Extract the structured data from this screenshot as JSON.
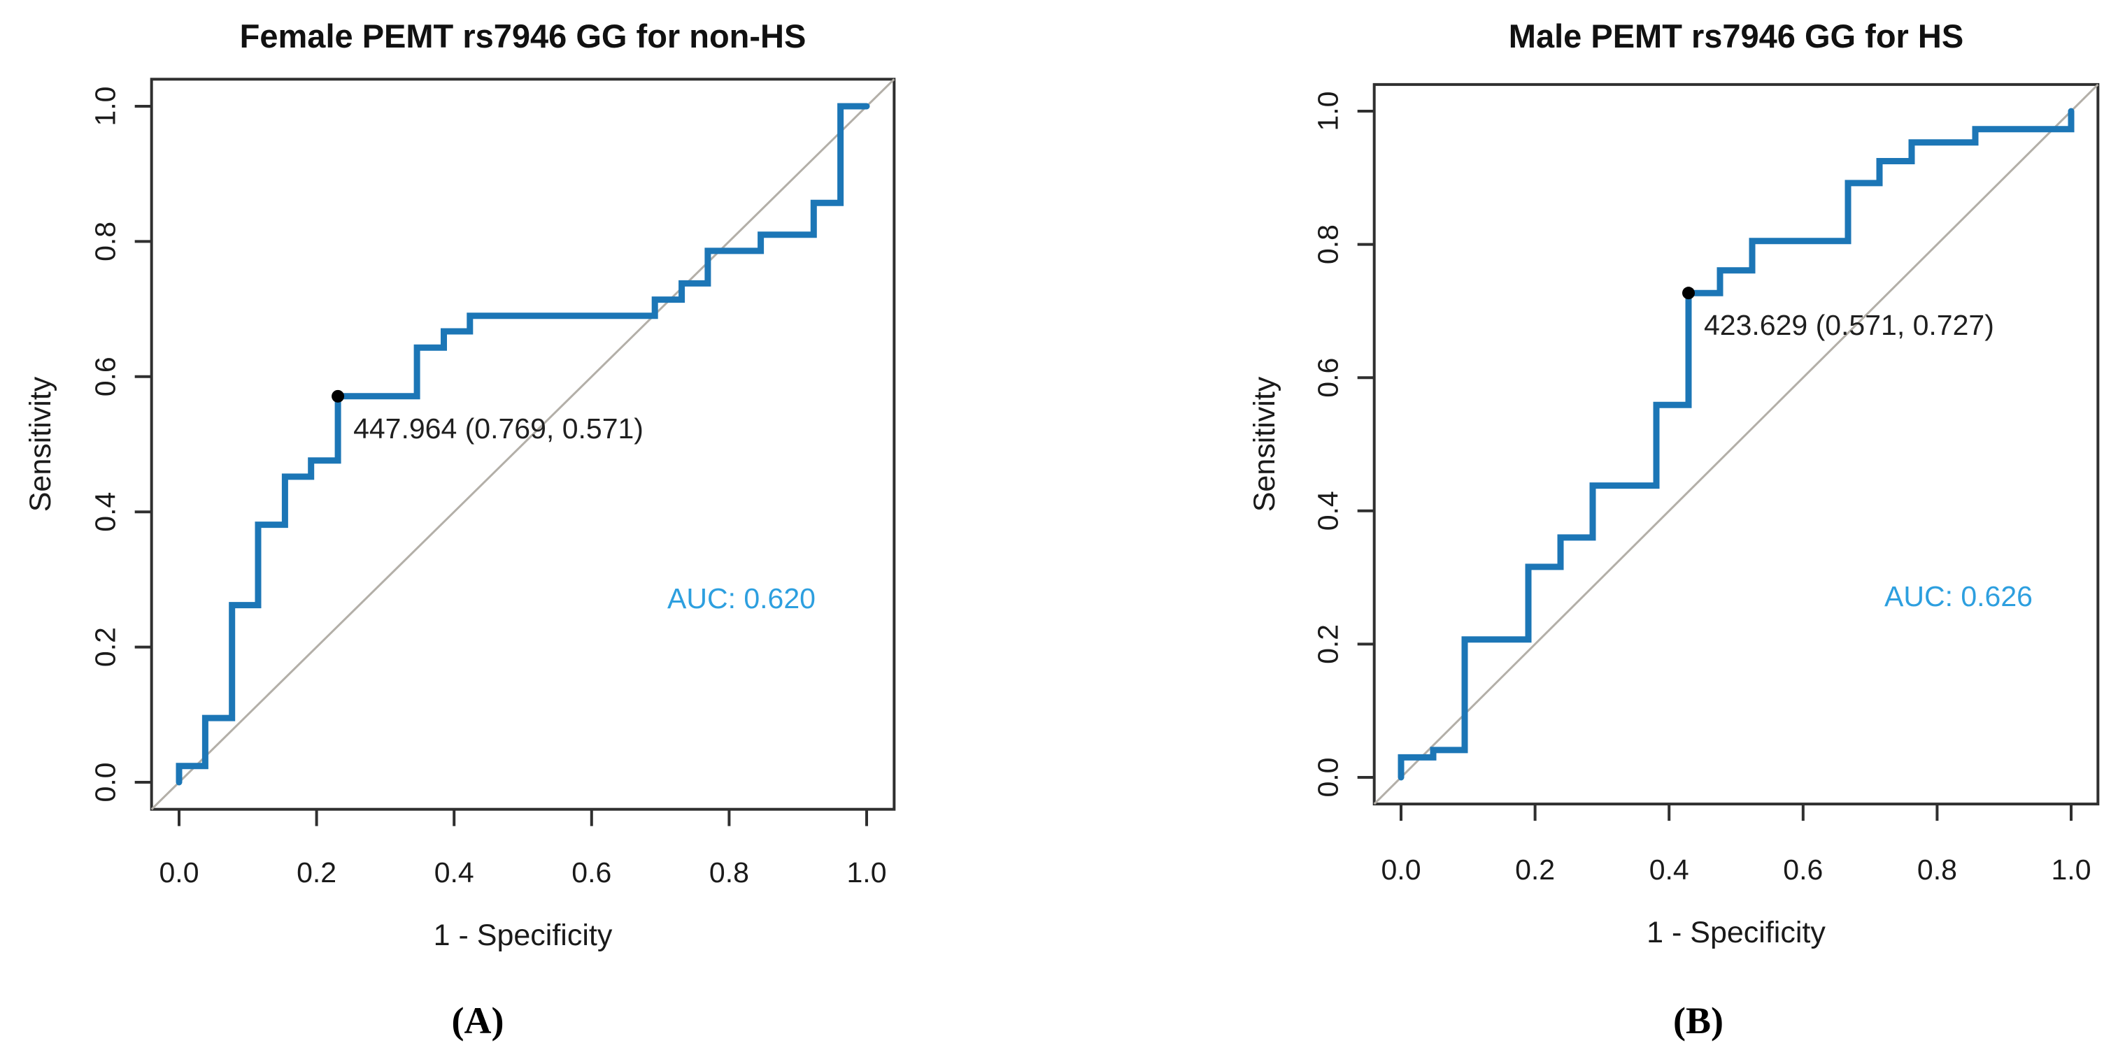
{
  "figure": {
    "background": "#ffffff",
    "colors": {
      "curve": "#1c76b6",
      "auc_text": "#2d9fdf",
      "diagonal": "#b3afa8",
      "axis": "#2f2f2f",
      "text": "#1a1a1a",
      "marked_point": "#000000"
    }
  },
  "chart_data": [
    {
      "type": "line",
      "subtype": "roc-step-curve",
      "panel": "A",
      "caption": "(A)",
      "title": "Female PEMT rs7946 GG for non-HS",
      "xlabel": "1 - Specificity",
      "ylabel": "Sensitivity",
      "xlim": [
        -0.04,
        1.04
      ],
      "ylim": [
        -0.04,
        1.04
      ],
      "grid": false,
      "xticks": [
        "0.0",
        "0.2",
        "0.4",
        "0.6",
        "0.8",
        "1.0"
      ],
      "yticks": [
        "0.0",
        "0.2",
        "0.4",
        "0.6",
        "0.8",
        "1.0"
      ],
      "diagonal_reference": true,
      "auc_label": "AUC: 0.620",
      "auc_value": 0.62,
      "threshold_label": "447.964 (0.769, 0.571)",
      "marked_point": {
        "x": 0.231,
        "y": 0.571,
        "threshold": 447.964,
        "specificity": 0.769,
        "sensitivity": 0.571
      },
      "series": [
        {
          "name": "ROC curve",
          "points": [
            [
              0.0,
              0.0
            ],
            [
              0.0,
              0.024
            ],
            [
              0.038,
              0.024
            ],
            [
              0.038,
              0.095
            ],
            [
              0.077,
              0.095
            ],
            [
              0.077,
              0.262
            ],
            [
              0.115,
              0.262
            ],
            [
              0.115,
              0.381
            ],
            [
              0.154,
              0.381
            ],
            [
              0.154,
              0.452
            ],
            [
              0.192,
              0.452
            ],
            [
              0.192,
              0.476
            ],
            [
              0.231,
              0.476
            ],
            [
              0.231,
              0.571
            ],
            [
              0.346,
              0.571
            ],
            [
              0.346,
              0.643
            ],
            [
              0.385,
              0.643
            ],
            [
              0.385,
              0.667
            ],
            [
              0.423,
              0.667
            ],
            [
              0.423,
              0.69
            ],
            [
              0.692,
              0.69
            ],
            [
              0.692,
              0.714
            ],
            [
              0.731,
              0.714
            ],
            [
              0.731,
              0.738
            ],
            [
              0.769,
              0.738
            ],
            [
              0.769,
              0.786
            ],
            [
              0.846,
              0.786
            ],
            [
              0.846,
              0.81
            ],
            [
              0.923,
              0.81
            ],
            [
              0.923,
              0.857
            ],
            [
              0.962,
              0.857
            ],
            [
              0.962,
              1.0
            ],
            [
              1.0,
              1.0
            ]
          ]
        }
      ]
    },
    {
      "type": "line",
      "subtype": "roc-step-curve",
      "panel": "B",
      "caption": "(B)",
      "title": "Male PEMT rs7946 GG for HS",
      "xlabel": "1 - Specificity",
      "ylabel": "Sensitivity",
      "xlim": [
        -0.04,
        1.04
      ],
      "ylim": [
        -0.04,
        1.04
      ],
      "grid": false,
      "xticks": [
        "0.0",
        "0.2",
        "0.4",
        "0.6",
        "0.8",
        "1.0"
      ],
      "yticks": [
        "0.0",
        "0.2",
        "0.4",
        "0.6",
        "0.8",
        "1.0"
      ],
      "diagonal_reference": true,
      "auc_label": "AUC: 0.626",
      "auc_value": 0.626,
      "threshold_label": "423.629 (0.571, 0.727)",
      "marked_point": {
        "x": 0.429,
        "y": 0.727,
        "threshold": 423.629,
        "specificity": 0.571,
        "sensitivity": 0.727
      },
      "series": [
        {
          "name": "ROC curve",
          "points": [
            [
              0.0,
              0.0
            ],
            [
              0.0,
              0.03
            ],
            [
              0.048,
              0.03
            ],
            [
              0.048,
              0.041
            ],
            [
              0.095,
              0.041
            ],
            [
              0.095,
              0.207
            ],
            [
              0.19,
              0.207
            ],
            [
              0.19,
              0.316
            ],
            [
              0.238,
              0.316
            ],
            [
              0.238,
              0.36
            ],
            [
              0.286,
              0.36
            ],
            [
              0.286,
              0.438
            ],
            [
              0.381,
              0.438
            ],
            [
              0.381,
              0.559
            ],
            [
              0.429,
              0.559
            ],
            [
              0.429,
              0.727
            ],
            [
              0.476,
              0.727
            ],
            [
              0.476,
              0.761
            ],
            [
              0.524,
              0.761
            ],
            [
              0.524,
              0.805
            ],
            [
              0.667,
              0.805
            ],
            [
              0.667,
              0.892
            ],
            [
              0.714,
              0.892
            ],
            [
              0.714,
              0.925
            ],
            [
              0.762,
              0.925
            ],
            [
              0.762,
              0.953
            ],
            [
              0.857,
              0.953
            ],
            [
              0.857,
              0.973
            ],
            [
              1.0,
              0.973
            ],
            [
              1.0,
              1.0
            ]
          ]
        }
      ]
    }
  ]
}
